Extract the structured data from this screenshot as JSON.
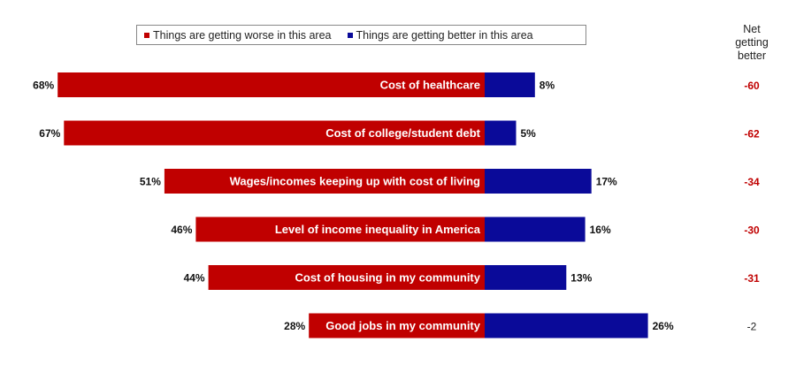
{
  "legend": {
    "worse_label": "Things are getting worse in this area",
    "better_label": "Things are getting better in this area"
  },
  "net_header": [
    "Net",
    "getting",
    "better"
  ],
  "colors": {
    "worse": "#C00000",
    "better": "#0A0A99",
    "net_negative": "#C00000",
    "net_other": "#222222"
  },
  "chart_data": {
    "type": "bar",
    "categories": [
      "Cost of healthcare",
      "Cost of college/student debt",
      "Wages/incomes keeping up with cost of living",
      "Level of income inequality in America",
      "Cost of housing in my community",
      "Good jobs in my community"
    ],
    "series": [
      {
        "name": "Things are getting worse in this area",
        "values": [
          68,
          67,
          51,
          46,
          44,
          28
        ]
      },
      {
        "name": "Things are getting better in this area",
        "values": [
          8,
          5,
          17,
          16,
          13,
          26
        ]
      }
    ],
    "worse_labels": [
      "68%",
      "67%",
      "51%",
      "46%",
      "44%",
      "28%"
    ],
    "better_labels": [
      "8%",
      "5%",
      "17%",
      "16%",
      "13%",
      "26%"
    ],
    "net": [
      "-60",
      "-62",
      "-34",
      "-30",
      "-31",
      "-2"
    ],
    "net_values": [
      -60,
      -62,
      -34,
      -30,
      -31,
      -2
    ]
  }
}
